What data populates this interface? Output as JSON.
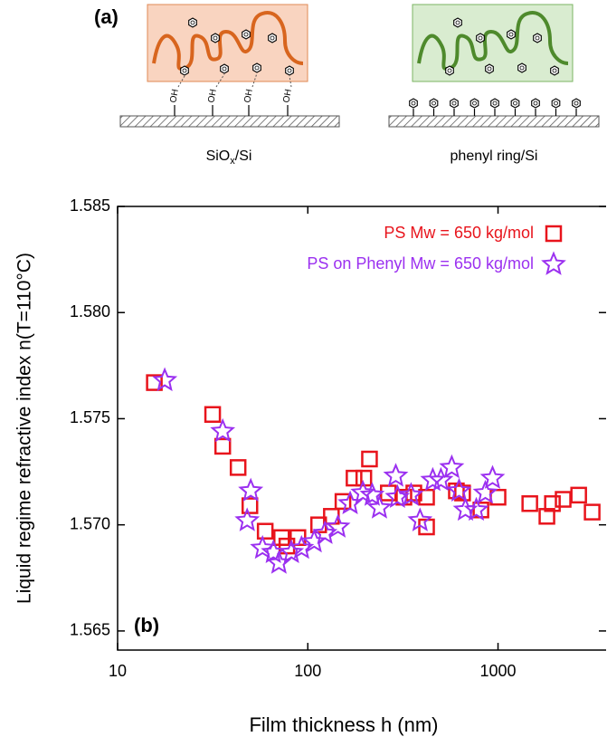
{
  "schematic": {
    "panel_label": "(a)",
    "left_substrate_label": [
      "SiO",
      "x",
      "/Si"
    ],
    "right_substrate_label": "phenyl ring/Si",
    "oh_labels": [
      "OH",
      "OH",
      "OH",
      "OH"
    ]
  },
  "chart_data": {
    "type": "scatter",
    "panel_label": "(b)",
    "log_x": true,
    "x_label": "Film thickness h  (nm)",
    "y_label": "Liquid regime refractive index  n(T=110°C)",
    "xlim": [
      10,
      3700
    ],
    "ylim": [
      1.5641,
      1.585
    ],
    "xticks": [
      10,
      100,
      1000
    ],
    "yticks": [
      1.565,
      {
        "value": 1.57,
        "label": "1.570"
      },
      1.575,
      {
        "value": 1.58,
        "label": "1.580"
      },
      1.585
    ],
    "legend": "upper right",
    "series": [
      {
        "name": "PS Mw = 650 kg/mol",
        "color": "#e8141c",
        "marker": "square",
        "x": [
          15.6,
          31.6,
          35.7,
          43,
          49.6,
          59.7,
          72.8,
          77.6,
          88.7,
          114,
          133,
          153,
          175,
          197,
          211,
          265,
          320,
          361,
          421,
          421,
          604,
          651,
          813,
          1000,
          1469,
          1807,
          1932,
          2200,
          2655,
          3126
        ],
        "values": [
          1.5767,
          1.5752,
          1.5737,
          1.5727,
          1.5709,
          1.5697,
          1.5694,
          1.569,
          1.5694,
          1.57,
          1.5704,
          1.5711,
          1.5722,
          1.5722,
          1.5731,
          1.5715,
          1.5713,
          1.5715,
          1.5713,
          1.5699,
          1.5716,
          1.5715,
          1.5707,
          1.5713,
          1.571,
          1.5704,
          1.571,
          1.5712,
          1.5714,
          1.5706
        ]
      },
      {
        "name": "PS on Phenyl Mw = 650 kg/mol",
        "color": "#9b30f0",
        "marker": "star",
        "x": [
          17.7,
          35.7,
          48,
          50.1,
          57.8,
          65.9,
          70.5,
          82,
          92.7,
          108,
          123,
          144,
          167,
          195,
          218,
          238,
          290,
          296,
          349,
          389,
          454,
          501,
          571,
          624,
          674,
          769,
          858,
          936
        ],
        "values": [
          1.5768,
          1.5744,
          1.5702,
          1.5716,
          1.5689,
          1.5687,
          1.5682,
          1.5687,
          1.5689,
          1.5692,
          1.5696,
          1.5699,
          1.571,
          1.5715,
          1.5714,
          1.5708,
          1.5723,
          1.5713,
          1.5714,
          1.5702,
          1.5721,
          1.5721,
          1.5727,
          1.5716,
          1.5707,
          1.5707,
          1.5715,
          1.5722
        ]
      }
    ]
  }
}
